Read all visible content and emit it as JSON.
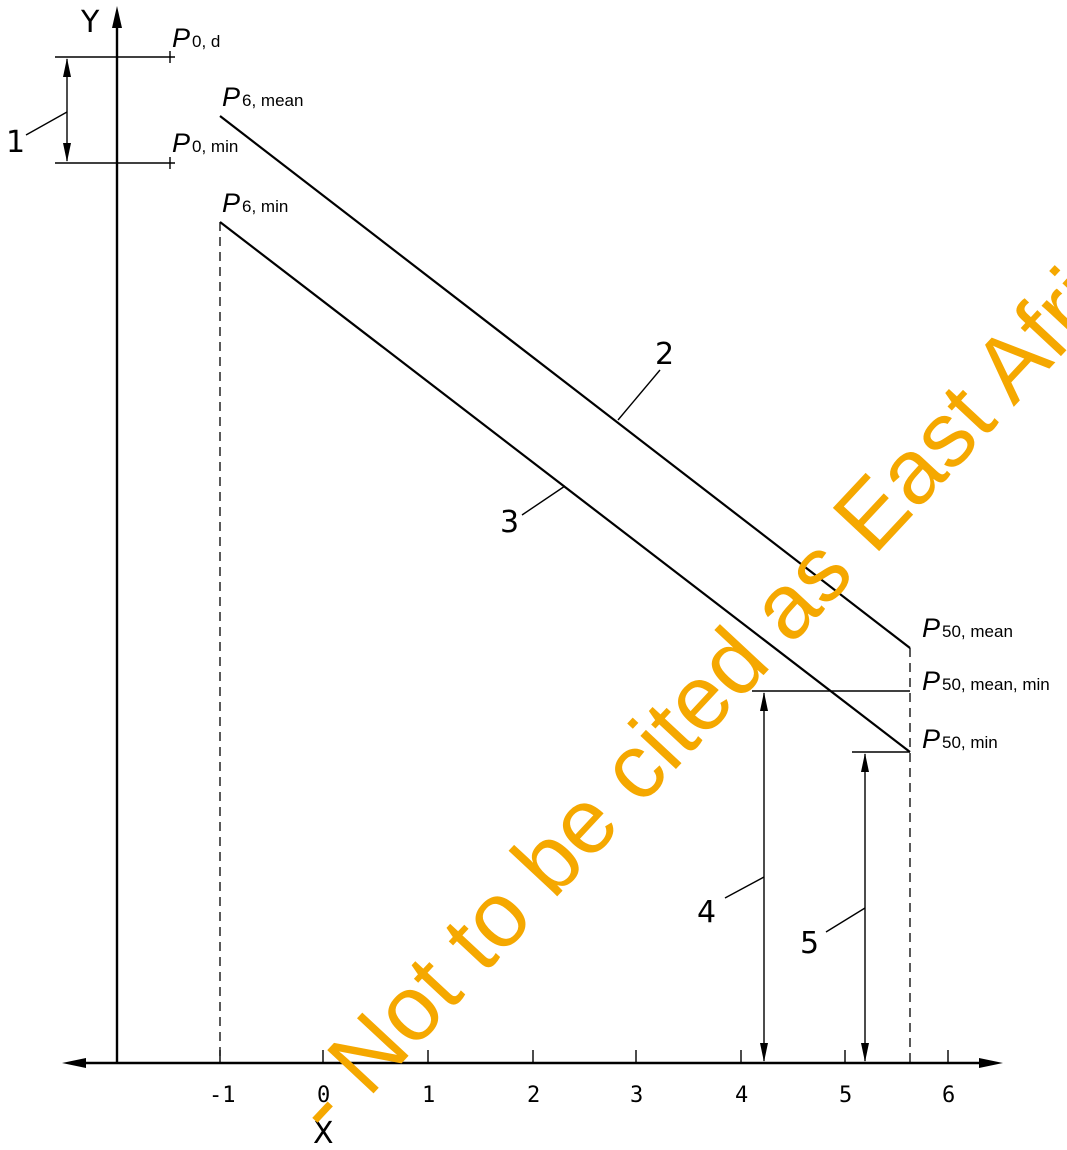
{
  "axes": {
    "y_label": "Y",
    "x_label": "X",
    "x_ticks": [
      "-1",
      "0",
      "1",
      "2",
      "3",
      "4",
      "5",
      "6"
    ]
  },
  "points": {
    "p0_d": {
      "main": "P",
      "sub": "0, d"
    },
    "p0_min": {
      "main": "P",
      "sub": "0, min"
    },
    "p6_mean": {
      "main": "P",
      "sub": "6, mean"
    },
    "p6_min": {
      "main": "P",
      "sub": "6, min"
    },
    "p50_mean": {
      "main": "P",
      "sub": "50, mean"
    },
    "p50_mean_min": {
      "main": "P",
      "sub": "50, mean, min"
    },
    "p50_min": {
      "main": "P",
      "sub": "50, min"
    }
  },
  "keys": [
    "1",
    "2",
    "3",
    "4",
    "5"
  ],
  "watermark": {
    "text": "- Not to be cited as East African Standard",
    "color": "#f5a800"
  }
}
